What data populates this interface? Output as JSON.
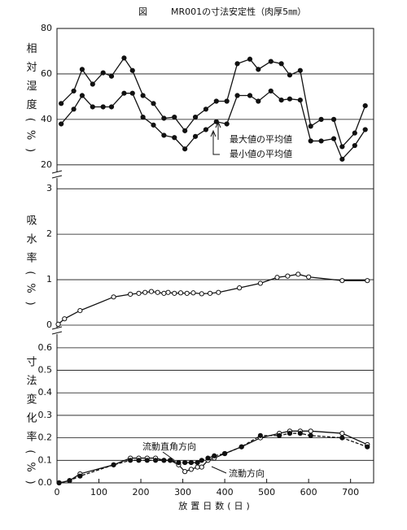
{
  "chart_data": [
    {
      "type": "line",
      "figure_label": "図",
      "title": "MR001の寸法安定性（肉厚5㎜）",
      "ylabel": "相対湿度(%)",
      "xlim": [
        0,
        755
      ],
      "ylim": [
        16,
        80
      ],
      "yticks": [
        20,
        40,
        60,
        80
      ],
      "grid": true,
      "x": [
        10,
        40,
        60,
        85,
        110,
        130,
        160,
        180,
        205,
        230,
        255,
        280,
        305,
        330,
        355,
        380,
        405,
        430,
        460,
        480,
        510,
        535,
        555,
        580,
        605,
        630,
        660,
        680,
        710,
        735
      ],
      "series": [
        {
          "name": "最大値の平均値",
          "color": "#111111",
          "marker": "filled",
          "dash": false,
          "values": [
            47,
            52.5,
            62,
            55.5,
            60.5,
            59,
            67,
            61.5,
            50.5,
            47,
            40.5,
            41,
            35,
            41,
            44.5,
            48,
            48,
            64.5,
            66.5,
            62,
            65.5,
            64.5,
            59.5,
            61.5,
            37,
            40,
            40,
            28,
            34,
            46
          ]
        },
        {
          "name": "最小値の平均値",
          "color": "#111111",
          "marker": "filled",
          "dash": false,
          "values": [
            38,
            44.5,
            50.5,
            45.5,
            45.5,
            45.5,
            51.5,
            51.5,
            41,
            37.5,
            33,
            32,
            27,
            32.5,
            35.5,
            39,
            38,
            50.5,
            50.5,
            48,
            52.5,
            48.5,
            49,
            48.5,
            30.5,
            30.5,
            31.5,
            22.5,
            28.5,
            35.5
          ]
        }
      ]
    },
    {
      "type": "line",
      "ylabel": "吸水率(%)",
      "xlim": [
        0,
        755
      ],
      "ylim": [
        0,
        3.2
      ],
      "yticks": [
        0,
        1,
        2,
        3
      ],
      "grid": true,
      "x": [
        3,
        18,
        55,
        135,
        175,
        195,
        210,
        225,
        240,
        255,
        265,
        280,
        295,
        310,
        325,
        345,
        365,
        385,
        435,
        485,
        525,
        550,
        575,
        600,
        680,
        740
      ],
      "series": [
        {
          "color": "#111111",
          "marker": "open",
          "dash": false,
          "values": [
            0.02,
            0.14,
            0.32,
            0.62,
            0.68,
            0.7,
            0.72,
            0.74,
            0.72,
            0.7,
            0.72,
            0.7,
            0.71,
            0.7,
            0.71,
            0.69,
            0.7,
            0.72,
            0.82,
            0.92,
            1.05,
            1.08,
            1.12,
            1.06,
            0.98,
            0.98
          ]
        }
      ]
    },
    {
      "type": "line",
      "ylabel": "寸法変化率(%)",
      "xlabel": "放置日数(日)",
      "xlim": [
        0,
        755
      ],
      "xticks": [
        0,
        100,
        200,
        300,
        400,
        500,
        600,
        700
      ],
      "ylim": [
        0,
        0.65
      ],
      "yticks": [
        {
          "value": 0,
          "label": "0.0"
        },
        0.1,
        0.2,
        0.3,
        0.4,
        0.5,
        0.6
      ],
      "grid": true,
      "x": [
        5,
        30,
        55,
        135,
        175,
        195,
        215,
        235,
        255,
        270,
        290,
        305,
        320,
        335,
        345,
        360,
        375,
        400,
        440,
        485,
        530,
        555,
        580,
        605,
        680,
        740
      ],
      "series": [
        {
          "name": "流動方向",
          "color": "#111111",
          "marker": "open",
          "dash": false,
          "values": [
            0,
            0.01,
            0.04,
            0.08,
            0.11,
            0.11,
            0.11,
            0.11,
            0.1,
            0.1,
            0.08,
            0.05,
            0.06,
            0.07,
            0.07,
            0.1,
            0.11,
            0.13,
            0.16,
            0.2,
            0.22,
            0.23,
            0.23,
            0.23,
            0.22,
            0.17
          ]
        },
        {
          "name": "流動直角方向",
          "color": "#111111",
          "marker": "filled",
          "dash": true,
          "values": [
            0,
            0.01,
            0.03,
            0.08,
            0.1,
            0.1,
            0.1,
            0.1,
            0.1,
            0.1,
            0.09,
            0.09,
            0.09,
            0.09,
            0.1,
            0.11,
            0.12,
            0.13,
            0.16,
            0.21,
            0.21,
            0.22,
            0.22,
            0.21,
            0.2,
            0.16
          ]
        }
      ]
    }
  ]
}
